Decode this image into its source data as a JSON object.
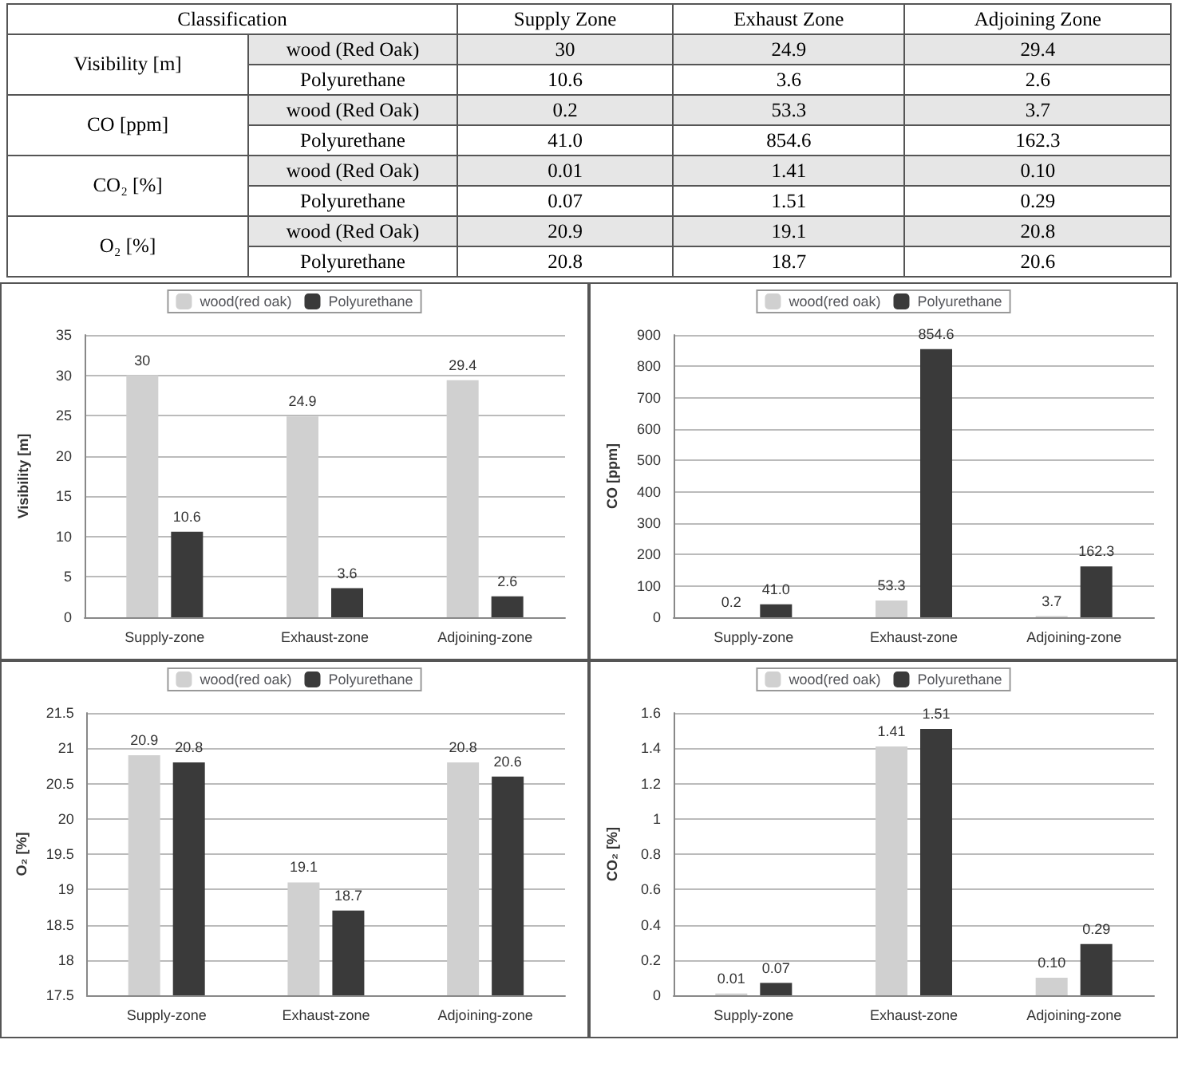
{
  "chart_data": [
    {
      "type": "other",
      "title": "Classification",
      "categories": [
        "Supply  Zone",
        "Exhaust  Zone",
        "Adjoining  Zone"
      ],
      "y_categories": [
        "Visibility  [m]",
        "CO  [ppm]",
        "CO₂  [%]",
        "O₂  [%]"
      ],
      "y2_categories": [
        "wood  (Red  Oak)",
        "Polyurethane",
        "wood  (Red  Oak)",
        "Polyurethane",
        "wood  (Red  Oak)",
        "Polyurethane",
        "wood  (Red  Oak)",
        "Polyurethane"
      ],
      "cell_labels": [
        [
          "30",
          "24.9",
          "29.4"
        ],
        [
          "10.6",
          "3.6",
          "2.6"
        ],
        [
          "0.2",
          "53.3",
          "3.7"
        ],
        [
          "41.0",
          "854.6",
          "162.3"
        ],
        [
          "0.01",
          "1.41",
          "0.10"
        ],
        [
          "0.07",
          "1.51",
          "0.29"
        ],
        [
          "20.9",
          "19.1",
          "20.8"
        ],
        [
          "20.8",
          "18.7",
          "20.6"
        ]
      ]
    },
    {
      "type": "bar",
      "ylabel": "Visibility [m]",
      "categories": [
        "Supply-zone",
        "Exhaust-zone",
        "Adjoining-zone"
      ],
      "ylim": [
        0,
        35
      ],
      "yticks": [
        0,
        5,
        10,
        15,
        20,
        25,
        30,
        35
      ],
      "grid": "y",
      "legend": "top",
      "data_labels": true,
      "series": [
        {
          "name": "wood(red oak)",
          "color": "#d0d0d0",
          "values": [
            30,
            24.9,
            29.4
          ]
        },
        {
          "name": "Polyurethane",
          "color": "#3a3a3a",
          "values": [
            10.6,
            3.6,
            2.6
          ]
        }
      ]
    },
    {
      "type": "bar",
      "ylabel": "CO [ppm]",
      "categories": [
        "Supply-zone",
        "Exhaust-zone",
        "Adjoining-zone"
      ],
      "ylim": [
        0,
        900
      ],
      "yticks": [
        0,
        100,
        200,
        300,
        400,
        500,
        600,
        700,
        800,
        900
      ],
      "grid": "y",
      "legend": "top",
      "series": [
        {
          "name": "wood(red oak)",
          "color": "#d0d0d0",
          "values": [
            0.2,
            53.3,
            3.7
          ],
          "value_labels": [
            "0.2",
            "53.3",
            "3.7"
          ]
        },
        {
          "name": "Polyurethane",
          "color": "#3a3a3a",
          "values": [
            41.0,
            854.6,
            162.3
          ],
          "value_labels": [
            "41.0",
            "854.6",
            "162.3"
          ]
        }
      ]
    },
    {
      "type": "bar",
      "ylabel": "O₂ [%]",
      "categories": [
        "Supply-zone",
        "Exhaust-zone",
        "Adjoining-zone"
      ],
      "ylim": [
        17.5,
        21.5
      ],
      "yticks": [
        17.5,
        18,
        18.5,
        19,
        19.5,
        20,
        20.5,
        21,
        21.5
      ],
      "grid": "y",
      "legend": "top",
      "data_labels": true,
      "series": [
        {
          "name": "wood(red oak)",
          "color": "#d0d0d0",
          "values": [
            20.9,
            19.1,
            20.8
          ]
        },
        {
          "name": "Polyurethane",
          "color": "#3a3a3a",
          "values": [
            20.8,
            18.7,
            20.6
          ]
        }
      ]
    },
    {
      "type": "bar",
      "ylabel": "CO₂ [%]",
      "categories": [
        "Supply-zone",
        "Exhaust-zone",
        "Adjoining-zone"
      ],
      "ylim": [
        0,
        1.6
      ],
      "yticks": [
        0,
        0.2,
        0.4,
        0.6,
        0.8,
        1,
        1.2,
        1.4,
        1.6
      ],
      "grid": "y",
      "legend": "top",
      "series": [
        {
          "name": "wood(red oak)",
          "color": "#d0d0d0",
          "values": [
            0.01,
            1.41,
            0.1
          ],
          "value_labels": [
            "0.01",
            "1.41",
            "0.10"
          ]
        },
        {
          "name": "Polyurethane",
          "color": "#3a3a3a",
          "values": [
            0.07,
            1.51,
            0.29
          ],
          "value_labels": [
            "0.07",
            "1.51",
            "0.29"
          ]
        }
      ]
    }
  ]
}
